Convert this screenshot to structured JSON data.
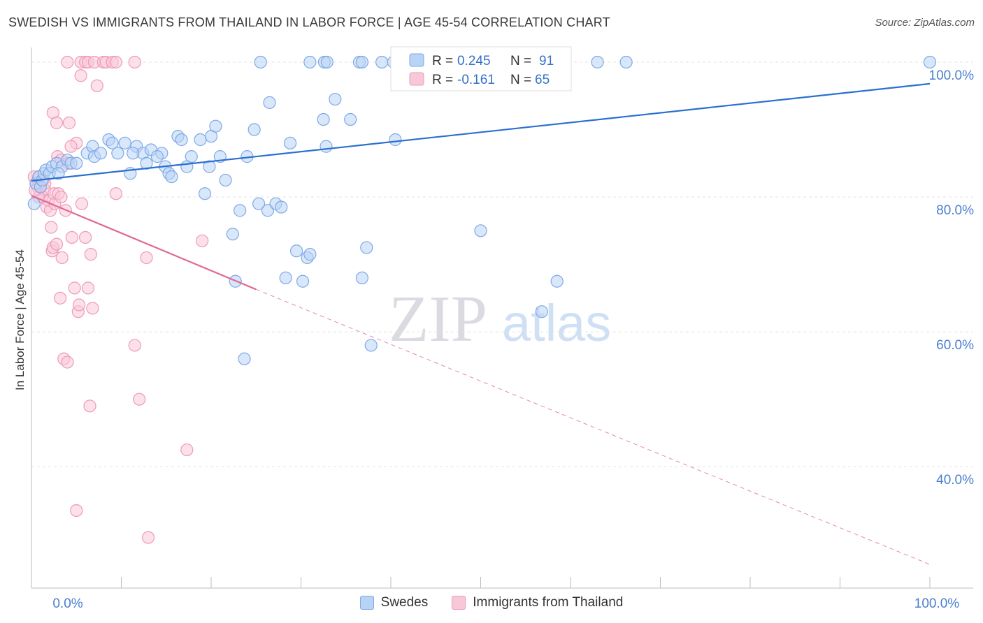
{
  "chart_data": {
    "type": "scatter",
    "title": "SWEDISH VS IMMIGRANTS FROM THAILAND IN LABOR FORCE | AGE 45-54 CORRELATION CHART",
    "source": "Source: ZipAtlas.com",
    "ylabel": "In Labor Force | Age 45-54",
    "xlabel": "",
    "xlim": [
      0,
      100
    ],
    "ylim": [
      22,
      103
    ],
    "x_tick_labels": {
      "left": "0.0%",
      "right": "100.0%"
    },
    "y_ticks": [
      {
        "value": 100,
        "label": "100.0%"
      },
      {
        "value": 80,
        "label": "80.0%"
      },
      {
        "value": 60,
        "label": "60.0%"
      },
      {
        "value": 40,
        "label": "40.0%"
      }
    ],
    "watermark": {
      "zip": "ZIP",
      "atlas": "atlas"
    },
    "legend_stats": [
      {
        "r_label": "R =",
        "r_value": "0.245",
        "n_label": "N =",
        "n_value": "91"
      },
      {
        "r_label": "R =",
        "r_value": "-0.161",
        "n_label": "N =",
        "n_value": "65"
      }
    ],
    "colors": {
      "swedes": "#7ea9e6",
      "swedes_fill": "#b9d3f5",
      "swedes_line": "#2a6fd0",
      "thai": "#ee9ab6",
      "thai_fill": "#f9c8d8",
      "thai_line": "#e06a95",
      "value_text": "#3572c6",
      "tick_text": "#4a7fd0"
    },
    "series": [
      {
        "name": "Swedes",
        "trend": {
          "x0": 0,
          "y0": 82.4,
          "x1": 100,
          "y1": 96.8
        },
        "points": [
          [
            0.3,
            79
          ],
          [
            0.5,
            82
          ],
          [
            0.8,
            83
          ],
          [
            1.0,
            81.5
          ],
          [
            1.2,
            82.5
          ],
          [
            1.4,
            83.5
          ],
          [
            1.6,
            84
          ],
          [
            2.0,
            83.5
          ],
          [
            2.3,
            84.5
          ],
          [
            2.8,
            85
          ],
          [
            3.4,
            84.5
          ],
          [
            4.0,
            85.5
          ],
          [
            4.4,
            85
          ],
          [
            5.0,
            85
          ],
          [
            6.2,
            86.5
          ],
          [
            6.8,
            87.5
          ],
          [
            7.0,
            86
          ],
          [
            7.7,
            86.5
          ],
          [
            8.6,
            88.5
          ],
          [
            9.0,
            88
          ],
          [
            9.6,
            86.5
          ],
          [
            10.4,
            88
          ],
          [
            11.0,
            83.5
          ],
          [
            11.7,
            87.5
          ],
          [
            12.4,
            86.5
          ],
          [
            12.8,
            85
          ],
          [
            13.3,
            87
          ],
          [
            14.5,
            86.5
          ],
          [
            14.9,
            84.5
          ],
          [
            15.3,
            83.5
          ],
          [
            15.6,
            83
          ],
          [
            16.3,
            89
          ],
          [
            16.7,
            88.5
          ],
          [
            17.3,
            84.5
          ],
          [
            17.8,
            86
          ],
          [
            18.8,
            88.5
          ],
          [
            19.3,
            80.5
          ],
          [
            20.0,
            89
          ],
          [
            19.8,
            84.5
          ],
          [
            20.5,
            90.5
          ],
          [
            21.0,
            86
          ],
          [
            21.6,
            82.5
          ],
          [
            22.4,
            74.5
          ],
          [
            23.2,
            78
          ],
          [
            24.0,
            86
          ],
          [
            24.8,
            90
          ],
          [
            25.3,
            79
          ],
          [
            26.3,
            78
          ],
          [
            26.5,
            94
          ],
          [
            27.2,
            79
          ],
          [
            27.8,
            78.5
          ],
          [
            28.3,
            68
          ],
          [
            28.8,
            88
          ],
          [
            29.5,
            72
          ],
          [
            30.2,
            67.5
          ],
          [
            30.7,
            71
          ],
          [
            31.0,
            71.5
          ],
          [
            32.5,
            91.5
          ],
          [
            32.8,
            87.5
          ],
          [
            33.8,
            94.5
          ],
          [
            35.5,
            91.5
          ],
          [
            36.8,
            68
          ],
          [
            37.3,
            72.5
          ],
          [
            37.8,
            58
          ],
          [
            40.5,
            88.5
          ],
          [
            50.0,
            75
          ],
          [
            56.8,
            63
          ],
          [
            58.5,
            67.5
          ],
          [
            22.7,
            67.5
          ],
          [
            23.7,
            56
          ],
          [
            25.5,
            100
          ],
          [
            31.0,
            100
          ],
          [
            32.6,
            100
          ],
          [
            32.9,
            100
          ],
          [
            36.5,
            100
          ],
          [
            36.8,
            100
          ],
          [
            39.0,
            100
          ],
          [
            40.3,
            100
          ],
          [
            40.7,
            100
          ],
          [
            41.2,
            100
          ],
          [
            42.0,
            100
          ],
          [
            43.0,
            100
          ],
          [
            53.0,
            100
          ],
          [
            53.8,
            100
          ],
          [
            56.3,
            100
          ],
          [
            63.0,
            100
          ],
          [
            66.2,
            100
          ],
          [
            100,
            100
          ],
          [
            3.0,
            83.5
          ],
          [
            11.3,
            86.5
          ],
          [
            14.0,
            86
          ]
        ]
      },
      {
        "name": "Immigrants from Thailand",
        "trend": {
          "x0": 0,
          "y0": 80.2,
          "x1": 25,
          "y1": 66.3,
          "dash_x1": 100,
          "dash_y1": 25.5
        },
        "points": [
          [
            0.3,
            83
          ],
          [
            0.5,
            82
          ],
          [
            0.7,
            81.5
          ],
          [
            0.9,
            83
          ],
          [
            1.0,
            80.5
          ],
          [
            1.2,
            80
          ],
          [
            1.3,
            82.5
          ],
          [
            1.5,
            81
          ],
          [
            1.7,
            78.5
          ],
          [
            1.9,
            79.5
          ],
          [
            2.1,
            78
          ],
          [
            2.2,
            75.5
          ],
          [
            2.3,
            72
          ],
          [
            2.4,
            72.5
          ],
          [
            2.5,
            80.5
          ],
          [
            2.6,
            79
          ],
          [
            2.8,
            73
          ],
          [
            3.0,
            80.5
          ],
          [
            3.2,
            65
          ],
          [
            3.3,
            80
          ],
          [
            3.4,
            71
          ],
          [
            3.6,
            56
          ],
          [
            3.8,
            78
          ],
          [
            4.0,
            55.5
          ],
          [
            4.2,
            91
          ],
          [
            4.5,
            74
          ],
          [
            4.8,
            66.5
          ],
          [
            5.0,
            88
          ],
          [
            5.2,
            63
          ],
          [
            5.3,
            64
          ],
          [
            5.5,
            98
          ],
          [
            5.6,
            79
          ],
          [
            6.0,
            74
          ],
          [
            6.3,
            66.5
          ],
          [
            6.5,
            49
          ],
          [
            6.6,
            71.5
          ],
          [
            6.8,
            63.5
          ],
          [
            7.3,
            96.5
          ],
          [
            9.4,
            80.5
          ],
          [
            11.5,
            58
          ],
          [
            12.0,
            50
          ],
          [
            12.8,
            71
          ],
          [
            17.3,
            42.5
          ],
          [
            19.0,
            73.5
          ],
          [
            5.0,
            33.5
          ],
          [
            13.0,
            29.5
          ],
          [
            2.4,
            92.5
          ],
          [
            2.8,
            91
          ],
          [
            2.9,
            86
          ],
          [
            3.3,
            85.5
          ],
          [
            4.1,
            85
          ],
          [
            4.4,
            87.5
          ],
          [
            0.8,
            80
          ],
          [
            1.5,
            82
          ],
          [
            0.4,
            81
          ],
          [
            4.0,
            100
          ],
          [
            5.5,
            100
          ],
          [
            6.0,
            100
          ],
          [
            6.3,
            100
          ],
          [
            7.0,
            100
          ],
          [
            8.0,
            100
          ],
          [
            8.3,
            100
          ],
          [
            9.0,
            100
          ],
          [
            9.4,
            100
          ],
          [
            11.5,
            100
          ]
        ]
      }
    ]
  }
}
